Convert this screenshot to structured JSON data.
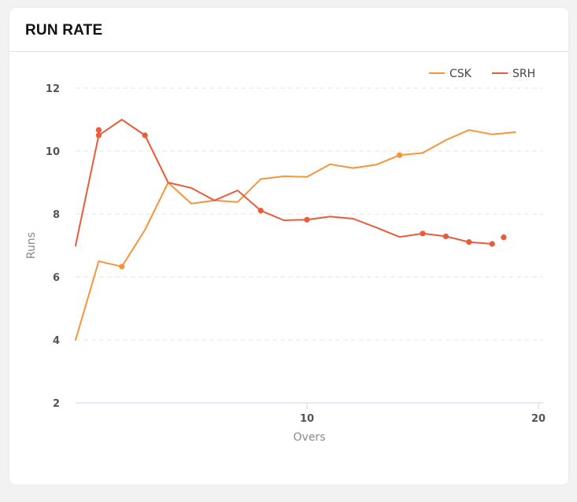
{
  "card": {
    "title": "RUN RATE"
  },
  "chart_data": {
    "type": "line",
    "xlabel": "Overs",
    "ylabel": "Runs",
    "xlim": [
      0,
      20
    ],
    "ylim": [
      2,
      12
    ],
    "x_ticks": [
      10,
      20
    ],
    "y_ticks": [
      2,
      4,
      6,
      8,
      10,
      12
    ],
    "legend_position": "top-right",
    "grid": true,
    "series": [
      {
        "name": "CSK",
        "color": "#f7943a",
        "x": [
          0,
          1,
          2,
          3,
          4,
          5,
          6,
          7,
          8,
          9,
          10,
          11,
          12,
          13,
          14,
          15,
          16,
          17,
          18,
          19,
          20
        ],
        "values": [
          4.0,
          6.5,
          6.33,
          7.5,
          9.0,
          8.33,
          8.43,
          8.38,
          9.11,
          9.2,
          9.18,
          9.58,
          9.46,
          9.57,
          9.87,
          9.94,
          10.35,
          10.67,
          10.53,
          10.6,
          null
        ],
        "marker_indices": [
          2,
          14,
          20
        ]
      },
      {
        "name": "SRH",
        "color": "#e95b3a",
        "x": [
          0,
          1,
          2,
          3,
          4,
          5,
          6,
          7,
          8,
          9,
          10,
          11,
          12,
          13,
          14,
          15,
          16,
          17,
          18,
          19
        ],
        "values": [
          7.0,
          10.5,
          11.0,
          10.5,
          9.0,
          8.83,
          8.43,
          8.75,
          8.11,
          7.8,
          7.82,
          7.92,
          7.85,
          7.57,
          7.27,
          7.38,
          7.29,
          7.11,
          7.05,
          null
        ],
        "marker_indices": [
          1,
          3,
          8,
          10,
          15,
          16,
          17,
          18
        ],
        "extra_points": [
          {
            "x": 1,
            "y": 10.67
          },
          {
            "x": 18.5,
            "y": 7.26
          }
        ]
      }
    ]
  }
}
